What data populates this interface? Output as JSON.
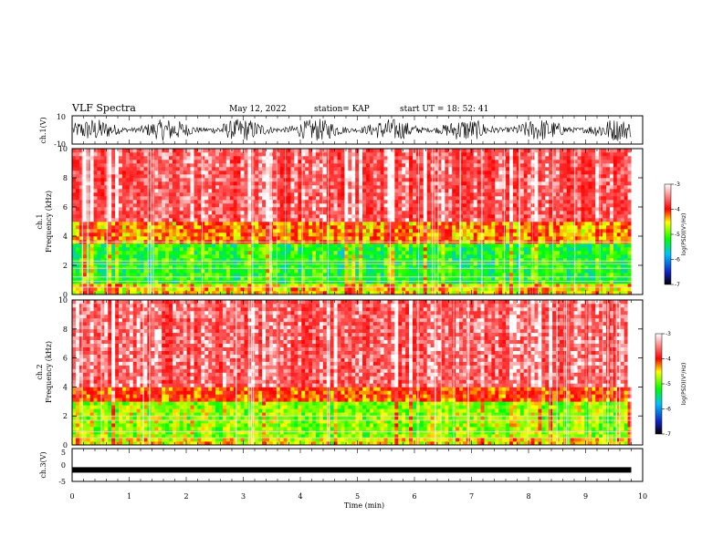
{
  "header": {
    "title": "VLF Spectra",
    "date": "May 12, 2022",
    "station": "station= KAP",
    "start": "start  UT =   18: 52: 41"
  },
  "chart_data": [
    {
      "type": "line",
      "panel": "waveform ch.1",
      "ylabel": "ch.1(V)",
      "ylim": [
        -10,
        10
      ],
      "yticks": [
        "10",
        "-10"
      ],
      "x_range_min": [
        0,
        9.8
      ],
      "description_level": "dense black waveform, amplitude mostly between -8 and 8 V"
    },
    {
      "type": "heatmap",
      "panel": "spectrogram ch.1",
      "ylabel": "ch.1\nFrequency (kHz)",
      "ylim": [
        0,
        10
      ],
      "yticks": [
        "0",
        "2",
        "4",
        "6",
        "8",
        "10"
      ],
      "x_range_min": [
        0,
        9.8
      ],
      "colorbar": {
        "label": "log(PSD)(V²/Hz)",
        "range": [
          -7,
          -3
        ],
        "ticks": [
          "-3",
          "-4",
          "-5",
          "-6",
          "-7"
        ]
      },
      "bands": [
        {
          "freq_khz": [
            0,
            0.8
          ],
          "level": -4.5
        },
        {
          "freq_khz": [
            0.8,
            3.5
          ],
          "level": -5.2
        },
        {
          "freq_khz": [
            3.5,
            5
          ],
          "level": -4.3
        },
        {
          "freq_khz": [
            5,
            10
          ],
          "level": -3.5
        }
      ],
      "lines_khz": [
        0.5,
        0.9,
        1.2,
        1.8,
        2.1,
        2.3,
        3.6
      ]
    },
    {
      "type": "heatmap",
      "panel": "spectrogram ch.2",
      "ylabel": "ch.2\nFrequency (kHz)",
      "ylim": [
        0,
        10
      ],
      "yticks": [
        "0",
        "2",
        "4",
        "6",
        "8",
        "10"
      ],
      "x_range_min": [
        0,
        9.8
      ],
      "colorbar": {
        "label": "log(PSD)(V²/Hz)",
        "range": [
          -7,
          -3
        ],
        "ticks": [
          "-3",
          "-4",
          "-5",
          "-6",
          "-7"
        ]
      },
      "bands": [
        {
          "freq_khz": [
            0,
            0.6
          ],
          "level": -4.5
        },
        {
          "freq_khz": [
            0.6,
            3
          ],
          "level": -4.8
        },
        {
          "freq_khz": [
            3,
            4
          ],
          "level": -4.1
        },
        {
          "freq_khz": [
            4,
            10
          ],
          "level": -3.4
        }
      ],
      "lines_khz": [
        0.5,
        0.9,
        1.7,
        2.0
      ]
    },
    {
      "type": "line",
      "panel": "waveform ch.3",
      "ylabel": "ch.3(V)",
      "ylim": [
        -5,
        5
      ],
      "yticks": [
        "5",
        "0",
        "-5"
      ],
      "x_range_min": [
        0,
        9.8
      ],
      "description_level": "thin black band around -1.5 V"
    }
  ],
  "xaxis": {
    "label": "Time (min)",
    "ticks": [
      "0",
      "1",
      "2",
      "3",
      "4",
      "5",
      "6",
      "7",
      "8",
      "9",
      "10"
    ],
    "xlim": [
      0,
      10
    ]
  },
  "colors": {
    "high": "#ff0000",
    "mid": "#ffff00",
    "low": "#00ff00",
    "lower": "#00bfff",
    "lowest": "#000080"
  }
}
